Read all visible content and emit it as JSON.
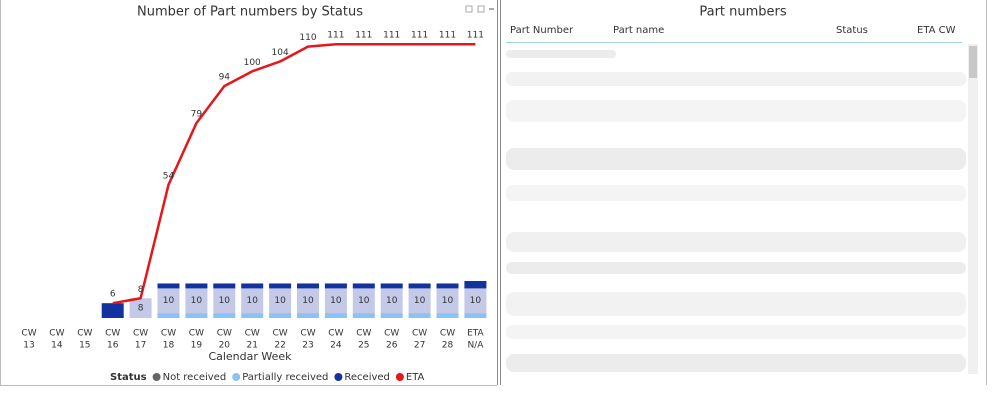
{
  "chart_data": {
    "type": "combo",
    "title": "Number of Part numbers by Status",
    "x_label": "Calendar Week",
    "legend_title": "Status",
    "categories": [
      [
        "CW",
        "13"
      ],
      [
        "CW",
        "14"
      ],
      [
        "CW",
        "15"
      ],
      [
        "CW",
        "16"
      ],
      [
        "CW",
        "17"
      ],
      [
        "CW",
        "18"
      ],
      [
        "CW",
        "19"
      ],
      [
        "CW",
        "20"
      ],
      [
        "CW",
        "21"
      ],
      [
        "CW",
        "22"
      ],
      [
        "CW",
        "23"
      ],
      [
        "CW",
        "24"
      ],
      [
        "CW",
        "25"
      ],
      [
        "CW",
        "26"
      ],
      [
        "CW",
        "27"
      ],
      [
        "CW",
        "28"
      ],
      [
        "ETA",
        "N/A"
      ]
    ],
    "ylim": [
      0,
      120
    ],
    "series": [
      {
        "name": "Not received",
        "color": "#c3c9e6",
        "legend_color": "#666666",
        "kind": "bar",
        "labels": true,
        "values": [
          null,
          null,
          null,
          null,
          8,
          10,
          10,
          10,
          10,
          10,
          10,
          10,
          10,
          10,
          10,
          10,
          10
        ]
      },
      {
        "name": "Partially received",
        "color": "#8cc1f4",
        "kind": "bar",
        "values": [
          null,
          null,
          null,
          null,
          null,
          2,
          2,
          2,
          2,
          2,
          2,
          2,
          2,
          2,
          2,
          2,
          2
        ]
      },
      {
        "name": "Received",
        "color": "#1232a0",
        "kind": "bar",
        "values": [
          null,
          null,
          null,
          6,
          null,
          2,
          2,
          2,
          2,
          2,
          2,
          2,
          2,
          2,
          2,
          2,
          3
        ]
      },
      {
        "name": "ETA",
        "color": "#e3171d",
        "kind": "line",
        "labels": true,
        "values": [
          null,
          null,
          null,
          6,
          8,
          54,
          79,
          94,
          100,
          104,
          110,
          111,
          111,
          111,
          111,
          111,
          111
        ]
      }
    ],
    "stack_order": [
      1,
      0,
      2
    ]
  },
  "table": {
    "title": "Part numbers",
    "columns": [
      "Part Number",
      "Part name",
      "Status",
      "ETA CW"
    ]
  }
}
